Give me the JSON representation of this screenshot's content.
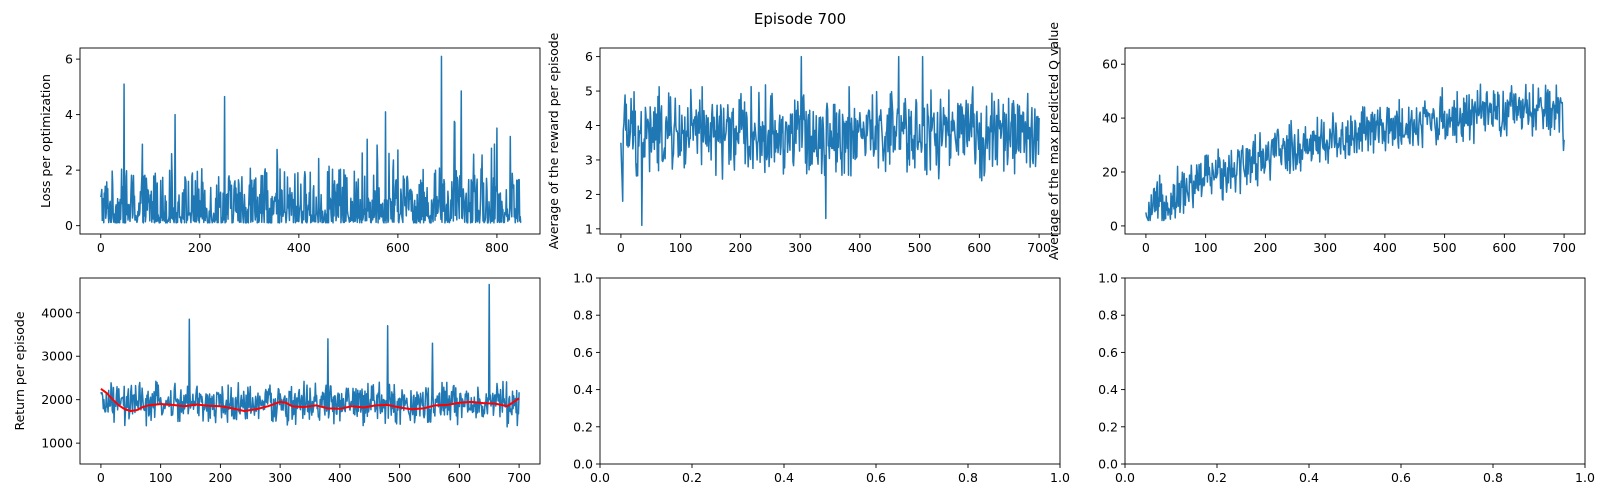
{
  "figure": {
    "title": "Episode 700"
  },
  "chart_data": [
    {
      "type": "line",
      "ylabel": "Loss per optimization",
      "xlim": [
        -42,
        887
      ],
      "ylim": [
        -0.3,
        6.4
      ],
      "xticks": [
        0,
        200,
        400,
        600,
        800
      ],
      "yticks": [
        0,
        2,
        4,
        6
      ],
      "series": [
        {
          "color": "#1f77b4",
          "n": 850,
          "x_end": 849,
          "baseline": 0.75,
          "spread": 0.55,
          "min": 0.1,
          "max": 6.1,
          "spikes": [
            [
              47,
              5.1
            ],
            [
              250,
              4.65
            ],
            [
              688,
              6.1
            ],
            [
              728,
              4.85
            ],
            [
              575,
              4.1
            ],
            [
              150,
              4.0
            ]
          ]
        }
      ]
    },
    {
      "type": "line",
      "ylabel": "Average of the reward per episode",
      "xlim": [
        -35,
        735
      ],
      "ylim": [
        0.85,
        6.25
      ],
      "xticks": [
        0,
        100,
        200,
        300,
        400,
        500,
        600,
        700
      ],
      "yticks": [
        1,
        2,
        3,
        4,
        5,
        6
      ],
      "series": [
        {
          "color": "#1f77b4",
          "n": 701,
          "x_end": 700,
          "baseline": 3.75,
          "spread": 1.0,
          "min": 1.1,
          "max": 6.0,
          "start": [
            3.5,
            2.9,
            2.4,
            1.8
          ],
          "spikes": [
            [
              35,
              1.1
            ],
            [
              343,
              1.3
            ],
            [
              302,
              6.0
            ],
            [
              465,
              6.0
            ],
            [
              505,
              6.0
            ]
          ]
        }
      ]
    },
    {
      "type": "line",
      "ylabel": "Average of the max predicted Q value",
      "xlim": [
        -35,
        735
      ],
      "ylim": [
        -3,
        66
      ],
      "xticks": [
        0,
        100,
        200,
        300,
        400,
        500,
        600,
        700
      ],
      "yticks": [
        0,
        20,
        40,
        60
      ],
      "series": [
        {
          "color": "#1f77b4",
          "n": 701,
          "x_end": 700,
          "trend": [
            [
              0,
              4
            ],
            [
              20,
              7
            ],
            [
              100,
              18
            ],
            [
              200,
              26
            ],
            [
              300,
              32
            ],
            [
              400,
              36
            ],
            [
              500,
              40
            ],
            [
              600,
              42
            ],
            [
              700,
              43
            ]
          ],
          "spread": 8,
          "min": 2,
          "max": 63,
          "start": [
            5,
            3.5,
            3,
            2.5,
            2
          ],
          "end": [
            35,
            28,
            32
          ]
        }
      ]
    },
    {
      "type": "line",
      "ylabel": "Return per episode",
      "xlim": [
        -35,
        735
      ],
      "ylim": [
        520,
        4800
      ],
      "xticks": [
        0,
        100,
        200,
        300,
        400,
        500,
        600,
        700
      ],
      "yticks": [
        1000,
        2000,
        3000,
        4000
      ],
      "series": [
        {
          "color": "#1f77b4",
          "n": 701,
          "x_end": 700,
          "baseline": 1900,
          "spread": 380,
          "min": 650,
          "max": 4650,
          "spikes": [
            [
              148,
              3850
            ],
            [
              650,
              4650
            ],
            [
              380,
              3400
            ],
            [
              480,
              3700
            ],
            [
              555,
              3300
            ]
          ]
        },
        {
          "color": "#ff0000",
          "points": [
            [
              0,
              2250
            ],
            [
              10,
              2150
            ],
            [
              20,
              2000
            ],
            [
              30,
              1870
            ],
            [
              40,
              1780
            ],
            [
              50,
              1740
            ],
            [
              60,
              1760
            ],
            [
              70,
              1830
            ],
            [
              80,
              1870
            ],
            [
              100,
              1900
            ],
            [
              120,
              1880
            ],
            [
              140,
              1850
            ],
            [
              160,
              1890
            ],
            [
              180,
              1860
            ],
            [
              200,
              1850
            ],
            [
              220,
              1800
            ],
            [
              240,
              1740
            ],
            [
              260,
              1780
            ],
            [
              280,
              1850
            ],
            [
              300,
              1950
            ],
            [
              310,
              1930
            ],
            [
              320,
              1850
            ],
            [
              340,
              1830
            ],
            [
              360,
              1870
            ],
            [
              380,
              1800
            ],
            [
              400,
              1790
            ],
            [
              420,
              1850
            ],
            [
              440,
              1820
            ],
            [
              460,
              1870
            ],
            [
              480,
              1880
            ],
            [
              500,
              1820
            ],
            [
              520,
              1780
            ],
            [
              540,
              1800
            ],
            [
              560,
              1870
            ],
            [
              580,
              1880
            ],
            [
              600,
              1930
            ],
            [
              620,
              1950
            ],
            [
              640,
              1920
            ],
            [
              660,
              1910
            ],
            [
              680,
              1850
            ],
            [
              700,
              2030
            ]
          ]
        }
      ]
    },
    {
      "type": "line",
      "ylabel": "",
      "xlim": [
        0,
        1
      ],
      "ylim": [
        0,
        1
      ],
      "xticks": [
        0.0,
        0.2,
        0.4,
        0.6,
        0.8,
        1.0
      ],
      "yticks": [
        0.0,
        0.2,
        0.4,
        0.6,
        0.8,
        1.0
      ],
      "tick_decimals": 1,
      "series": []
    },
    {
      "type": "line",
      "ylabel": "",
      "xlim": [
        0,
        1
      ],
      "ylim": [
        0,
        1
      ],
      "xticks": [
        0.0,
        0.2,
        0.4,
        0.6,
        0.8,
        1.0
      ],
      "yticks": [
        0.0,
        0.2,
        0.4,
        0.6,
        0.8,
        1.0
      ],
      "tick_decimals": 1,
      "series": []
    }
  ]
}
